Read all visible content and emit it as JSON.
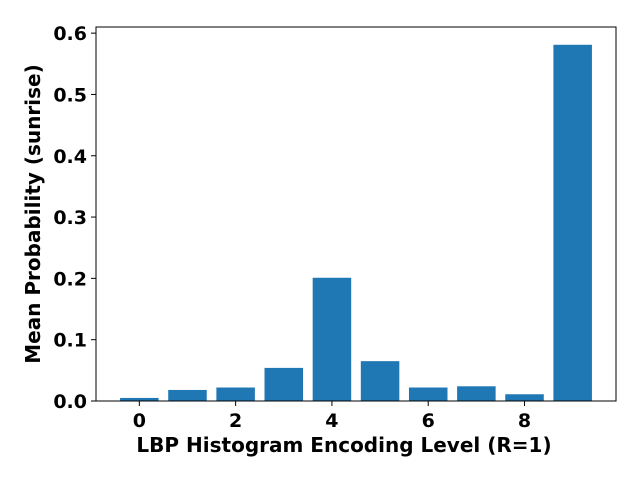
{
  "chart_data": {
    "type": "bar",
    "x": [
      0,
      1,
      2,
      3,
      4,
      5,
      6,
      7,
      8,
      9
    ],
    "values": [
      0.005,
      0.018,
      0.022,
      0.054,
      0.201,
      0.065,
      0.022,
      0.024,
      0.011,
      0.581
    ],
    "xlabel": "LBP Histogram Encoding Level (R=1)",
    "ylabel": "Mean Probability (sunrise)",
    "xlim": [
      -0.9,
      9.9
    ],
    "ylim": [
      0,
      0.61
    ],
    "xticks": [
      0,
      2,
      4,
      6,
      8
    ],
    "xtick_labels": [
      "0",
      "2",
      "4",
      "6",
      "8"
    ],
    "yticks": [
      0.0,
      0.1,
      0.2,
      0.3,
      0.4,
      0.5,
      0.6
    ],
    "ytick_labels": [
      "0.0",
      "0.1",
      "0.2",
      "0.3",
      "0.4",
      "0.5",
      "0.6"
    ],
    "bar_color": "#1f77b4",
    "grid": false,
    "legend": "none"
  }
}
